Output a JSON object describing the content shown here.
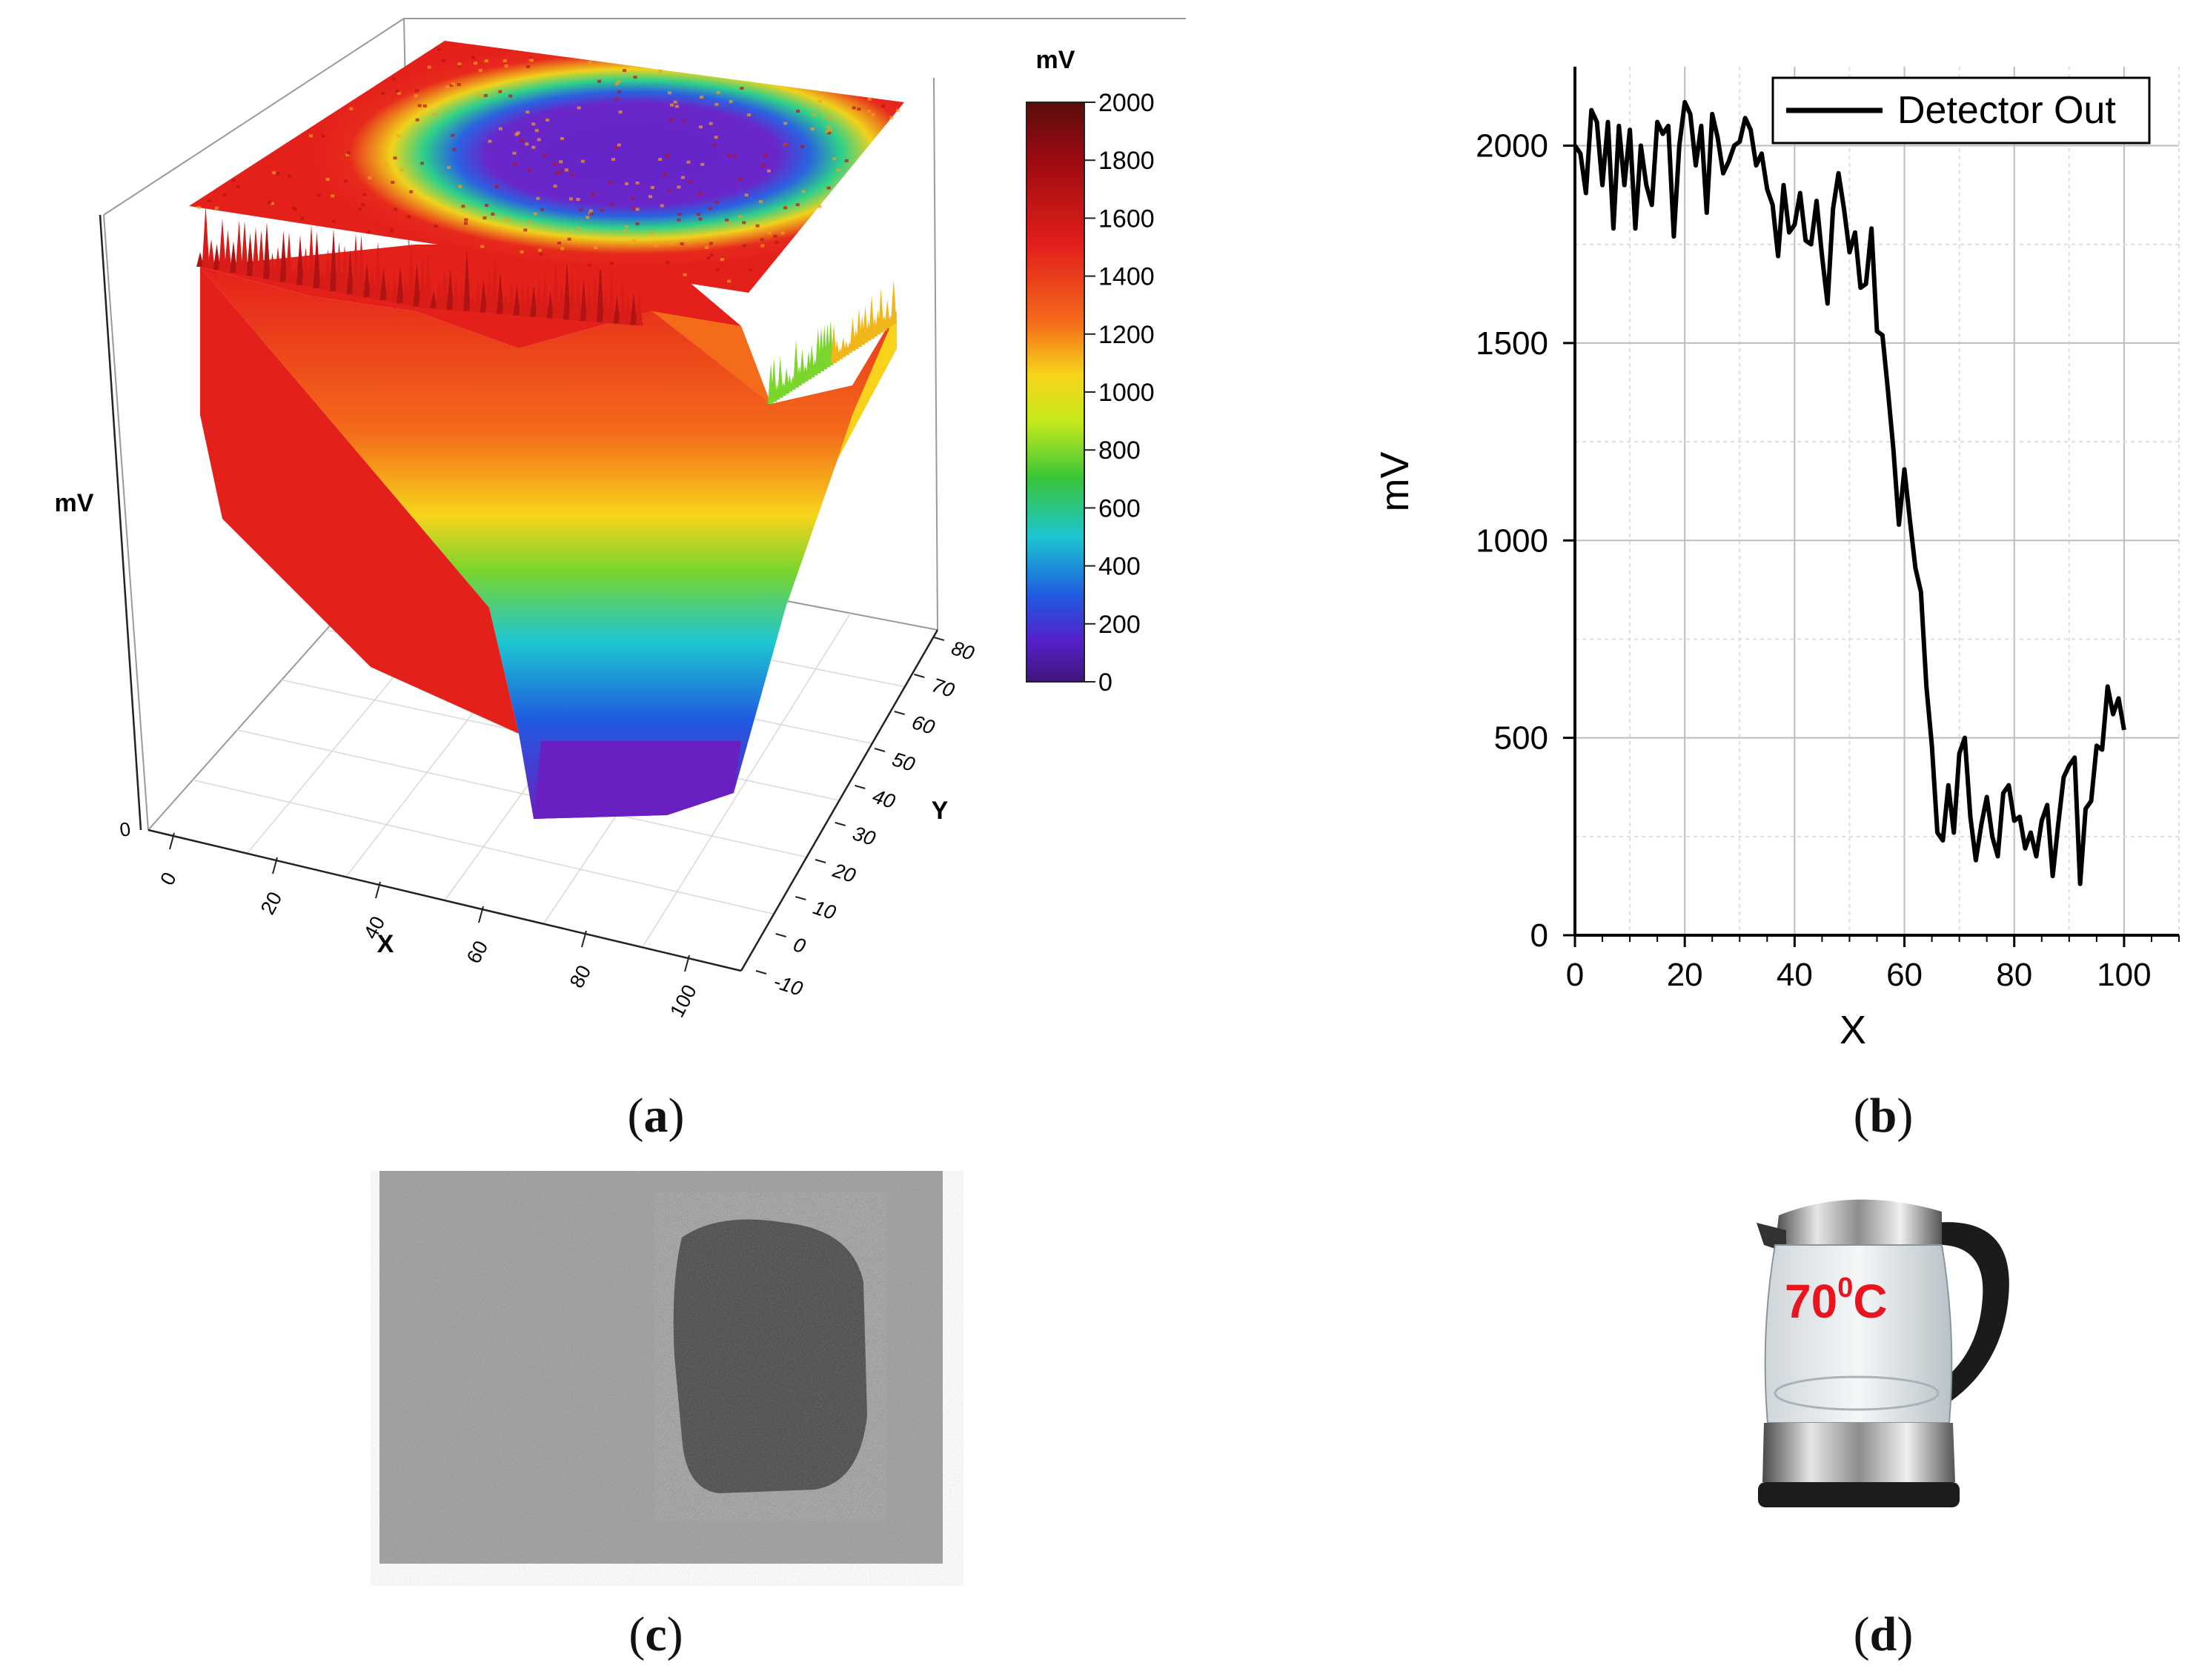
{
  "colors": {
    "ramp": [
      "#5a0c0c",
      "#9c0a12",
      "#e4201b",
      "#f46b1a",
      "#f7d41b",
      "#c6ea1d",
      "#38c43a",
      "#1dc6d2",
      "#1f5be0",
      "#5520c9",
      "#40157a"
    ],
    "line": "#000000",
    "grid": "#c8c8c8",
    "kettle_text": "#e8141e"
  },
  "chart_data": [
    {
      "id": "a",
      "type": "heatmap",
      "subtype": "3d-surface-with-projection",
      "zlabel": "mV",
      "xlabel": "X",
      "ylabel": "Y",
      "colorbar_title": "mV",
      "colorbar_ticks": [
        "2000",
        "1800",
        "1600",
        "1400",
        "1200",
        "1000",
        "800",
        "600",
        "400",
        "200",
        "0"
      ],
      "colorbar_range": [
        0,
        2000
      ],
      "x_ticks": [
        "0",
        "20",
        "40",
        "60",
        "80",
        "100"
      ],
      "y_ticks": [
        "-10",
        "0",
        "10",
        "20",
        "30",
        "40",
        "50",
        "60",
        "70",
        "80"
      ],
      "z_ticks": [
        "0"
      ],
      "xlim": [
        0,
        100
      ],
      "ylim": [
        -10,
        80
      ],
      "zlim": [
        0,
        2000
      ],
      "surface_profile_x": [
        0,
        10,
        20,
        30,
        40,
        50,
        55,
        60,
        65,
        70,
        75,
        80,
        85,
        90,
        95,
        100
      ],
      "surface_profile_mV": [
        1500,
        1550,
        1550,
        1520,
        1450,
        1350,
        1100,
        700,
        250,
        60,
        40,
        60,
        250,
        800,
        1200,
        1400
      ]
    },
    {
      "id": "b",
      "type": "line",
      "xlabel": "X",
      "ylabel": "mV",
      "xlim": [
        0,
        110
      ],
      "ylim": [
        0,
        2200
      ],
      "x_ticks": [
        0,
        20,
        40,
        60,
        80,
        100
      ],
      "y_ticks": [
        0,
        500,
        1000,
        1500,
        2000
      ],
      "x_tick_labels": [
        "0",
        "20",
        "40",
        "60",
        "80",
        "100"
      ],
      "y_tick_labels": [
        "0",
        "500",
        "1000",
        "1500",
        "2000"
      ],
      "legend": [
        "Detector Out"
      ],
      "legend_position": "top-right",
      "series": [
        {
          "name": "Detector Out",
          "x": [
            0,
            1,
            2,
            3,
            4,
            5,
            6,
            7,
            8,
            9,
            10,
            11,
            12,
            13,
            14,
            15,
            16,
            17,
            18,
            19,
            20,
            21,
            22,
            23,
            24,
            25,
            26,
            27,
            28,
            29,
            30,
            31,
            32,
            33,
            34,
            35,
            36,
            37,
            38,
            39,
            40,
            41,
            42,
            43,
            44,
            45,
            46,
            47,
            48,
            49,
            50,
            51,
            52,
            53,
            54,
            55,
            56,
            57,
            58,
            59,
            60,
            61,
            62,
            63,
            64,
            65,
            66,
            67,
            68,
            69,
            70,
            71,
            72,
            73,
            74,
            75,
            76,
            77,
            78,
            79,
            80,
            81,
            82,
            83,
            84,
            85,
            86,
            87,
            88,
            89,
            90,
            91,
            92,
            93,
            94,
            95,
            96,
            97,
            98,
            99,
            100
          ],
          "values": [
            2000,
            1980,
            1880,
            2090,
            2060,
            1900,
            2060,
            1790,
            2050,
            1900,
            2040,
            1790,
            2000,
            1900,
            1850,
            2060,
            2030,
            2050,
            1770,
            2000,
            2110,
            2080,
            1950,
            2050,
            1830,
            2080,
            2020,
            1930,
            1960,
            2000,
            2010,
            2070,
            2040,
            1950,
            1980,
            1890,
            1850,
            1720,
            1900,
            1780,
            1800,
            1880,
            1760,
            1750,
            1860,
            1720,
            1600,
            1840,
            1930,
            1840,
            1730,
            1780,
            1640,
            1650,
            1790,
            1530,
            1520,
            1380,
            1230,
            1040,
            1180,
            1050,
            930,
            870,
            630,
            480,
            260,
            240,
            380,
            260,
            460,
            500,
            300,
            190,
            280,
            350,
            250,
            200,
            360,
            380,
            290,
            300,
            220,
            260,
            200,
            290,
            330,
            150,
            280,
            400,
            430,
            450,
            130,
            320,
            340,
            480,
            470,
            630,
            560,
            600,
            520
          ]
        }
      ]
    }
  ],
  "panel_c": {
    "type": "grayscale-image",
    "description_visible": ""
  },
  "panel_d": {
    "kettle_label": "70",
    "kettle_label_sup": "0",
    "kettle_label_unit": "C"
  },
  "captions": {
    "a": "a",
    "b": "b",
    "c": "c",
    "d": "d"
  }
}
